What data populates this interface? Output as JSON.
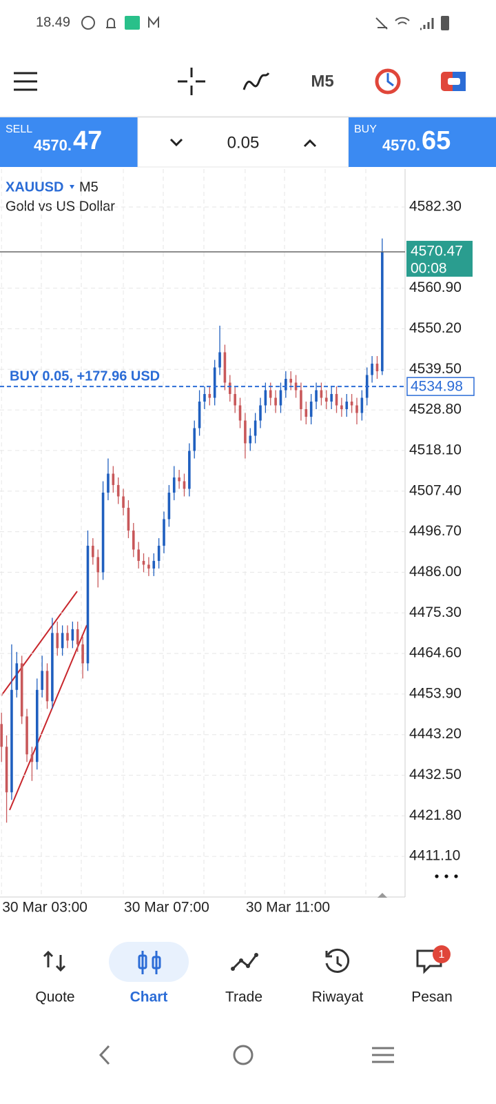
{
  "status_bar": {
    "time": "18.49"
  },
  "toolbar": {
    "timeframe": "M5"
  },
  "trade_panel": {
    "sell_label": "SELL",
    "sell_price": "4570.",
    "sell_price_pips": "47",
    "lot": "0.05",
    "buy_label": "BUY",
    "buy_price": "4570.",
    "buy_price_pips": "65"
  },
  "chart_data": {
    "type": "candlestick",
    "symbol": "XAUUSD",
    "timeframe": "M5",
    "title": "Gold vs US Dollar",
    "up_color": "#1f5fbf",
    "down_color": "#c8585a",
    "grid": true,
    "x": [
      180,
      190,
      200,
      210,
      220,
      230,
      240,
      250,
      260,
      270,
      280,
      290,
      300,
      310,
      320,
      330,
      340,
      350,
      360,
      370,
      380,
      390,
      400,
      410,
      420,
      430,
      440,
      450,
      460,
      470,
      480,
      490,
      500,
      510,
      520,
      530,
      540,
      550,
      560,
      570,
      580,
      590,
      600,
      610,
      620,
      630,
      640,
      650,
      660,
      670,
      680,
      690,
      700,
      710,
      720,
      730,
      740,
      750,
      760,
      770,
      780,
      790,
      800,
      810,
      820,
      830,
      840,
      850,
      860,
      870,
      880,
      890,
      900,
      910,
      920,
      930
    ],
    "open": [
      4446,
      4440,
      4428,
      4455,
      4462,
      4448,
      4438,
      4436,
      4455,
      4460,
      4452,
      4470,
      4466,
      4470,
      4468,
      4471,
      4467,
      4462,
      4493,
      4490,
      4486,
      4507,
      4512,
      4509,
      4506,
      4503,
      4497,
      4492,
      4489,
      4488,
      4487,
      4489,
      4493,
      4500,
      4507,
      4511,
      4510,
      4508,
      4518,
      4524,
      4531,
      4533,
      4532,
      4540,
      4544,
      4536,
      4533,
      4530,
      4526,
      4520,
      4522,
      4526,
      4530,
      4534,
      4532,
      4530,
      4534,
      4537,
      4536,
      4534,
      4529,
      4527,
      4531,
      4534,
      4532,
      4531,
      4533,
      4530,
      4529,
      4531,
      4530,
      4528,
      4532,
      4538,
      4541,
      4539
    ],
    "high": [
      4449,
      4443,
      4467,
      4465,
      4464,
      4450,
      4440,
      4458,
      4464,
      4462,
      4474,
      4473,
      4472,
      4472,
      4473,
      4473,
      4469,
      4497,
      4495,
      4492,
      4510,
      4516,
      4514,
      4511,
      4508,
      4505,
      4499,
      4494,
      4491,
      4490,
      4491,
      4495,
      4502,
      4509,
      4514,
      4513,
      4512,
      4520,
      4526,
      4534,
      4535,
      4535,
      4542,
      4551,
      4546,
      4538,
      4535,
      4532,
      4528,
      4524,
      4528,
      4532,
      4536,
      4536,
      4534,
      4536,
      4539,
      4539,
      4538,
      4536,
      4531,
      4533,
      4536,
      4536,
      4534,
      4535,
      4535,
      4532,
      4533,
      4533,
      4532,
      4534,
      4540,
      4543,
      4543,
      4574
    ],
    "low": [
      4436,
      4420,
      4426,
      4453,
      4446,
      4436,
      4431,
      4434,
      4453,
      4450,
      4450,
      4464,
      4464,
      4466,
      4466,
      4465,
      4458,
      4460,
      4488,
      4482,
      4484,
      4505,
      4507,
      4504,
      4501,
      4495,
      4490,
      4487,
      4486,
      4485,
      4485,
      4487,
      4491,
      4498,
      4505,
      4508,
      4506,
      4506,
      4516,
      4522,
      4529,
      4530,
      4530,
      4538,
      4534,
      4531,
      4528,
      4524,
      4516,
      4518,
      4520,
      4524,
      4528,
      4530,
      4528,
      4528,
      4532,
      4534,
      4532,
      4526,
      4525,
      4525,
      4529,
      4530,
      4529,
      4529,
      4528,
      4527,
      4527,
      4528,
      4525,
      4526,
      4530,
      4536,
      4537,
      4538
    ],
    "close": [
      4440,
      4428,
      4455,
      4462,
      4448,
      4438,
      4436,
      4455,
      4460,
      4452,
      4470,
      4466,
      4470,
      4468,
      4471,
      4467,
      4462,
      4493,
      4490,
      4486,
      4507,
      4512,
      4509,
      4506,
      4503,
      4497,
      4492,
      4489,
      4488,
      4487,
      4489,
      4493,
      4500,
      4507,
      4511,
      4510,
      4508,
      4518,
      4524,
      4531,
      4533,
      4532,
      4540,
      4544,
      4536,
      4533,
      4530,
      4526,
      4520,
      4522,
      4526,
      4530,
      4534,
      4532,
      4530,
      4534,
      4537,
      4536,
      4534,
      4529,
      4527,
      4531,
      4534,
      4532,
      4531,
      4533,
      4530,
      4529,
      4531,
      4530,
      4528,
      4532,
      4538,
      4541,
      4539,
      4570.47
    ],
    "xlim": [
      177,
      975
    ],
    "xticks": [
      {
        "value": 180,
        "label": "30 Mar 03:00"
      },
      {
        "value": 420,
        "label": "30 Mar 07:00"
      },
      {
        "value": 660,
        "label": "30 Mar 11:00"
      }
    ],
    "ylim": [
      4400.4,
      4592.3
    ],
    "yticks": [
      {
        "value": 4582.3,
        "label": "4582.30"
      },
      {
        "value": 4560.9,
        "label": "4560.90"
      },
      {
        "value": 4550.2,
        "label": "4550.20"
      },
      {
        "value": 4539.5,
        "label": "4539.50"
      },
      {
        "value": 4528.8,
        "label": "4528.80"
      },
      {
        "value": 4518.1,
        "label": "4518.10"
      },
      {
        "value": 4507.4,
        "label": "4507.40"
      },
      {
        "value": 4496.7,
        "label": "4496.70"
      },
      {
        "value": 4486,
        "label": "4486.00"
      },
      {
        "value": 4475.3,
        "label": "4475.30"
      },
      {
        "value": 4464.6,
        "label": "4464.60"
      },
      {
        "value": 4453.9,
        "label": "4453.90"
      },
      {
        "value": 4443.2,
        "label": "4443.20"
      },
      {
        "value": 4432.5,
        "label": "4432.50"
      },
      {
        "value": 4421.8,
        "label": "4421.80"
      },
      {
        "value": 4411.1,
        "label": "4411.10"
      }
    ],
    "bid_line": {
      "value": 4570.47,
      "label": "4570.47",
      "timer": "00:08",
      "color": "#2a9d8f"
    },
    "position": {
      "value": 4534.98,
      "label": "4534.98",
      "text": "BUY 0.05,   +177.96 USD",
      "color": "#2b6cd6"
    }
  },
  "nav": {
    "items": [
      "Quote",
      "Chart",
      "Trade",
      "Riwayat",
      "Pesan"
    ],
    "active": 1,
    "badge": "1"
  }
}
